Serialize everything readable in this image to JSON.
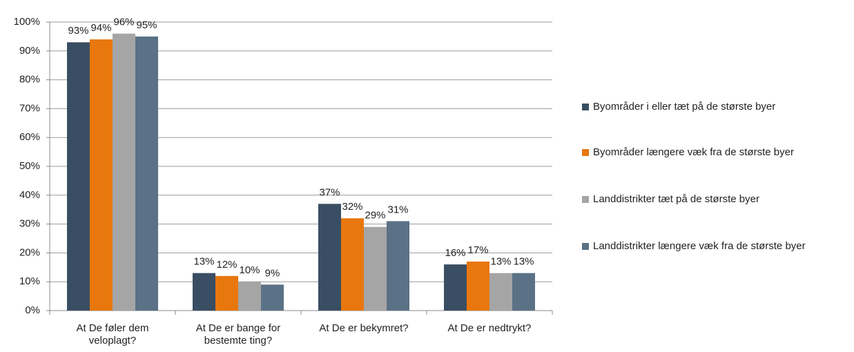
{
  "chart_data": {
    "type": "bar",
    "categories": [
      "At De føler dem veloplagt?",
      "At De er bange for bestemte ting?",
      "At De er bekymret?",
      "At De er nedtrykt?"
    ],
    "series": [
      {
        "name": "Byområder i eller tæt på de største byer",
        "color": "#3a4e63",
        "values": [
          93,
          13,
          37,
          16
        ],
        "value_labels": [
          "93%",
          "13%",
          "37%",
          "16%"
        ]
      },
      {
        "name": "Byområder længere væk fra de største byer",
        "color": "#e8770e",
        "values": [
          94,
          12,
          32,
          17
        ],
        "value_labels": [
          "94%",
          "12%",
          "32%",
          "17%"
        ]
      },
      {
        "name": "Landdistrikter tæt på de største byer",
        "color": "#a5a5a5",
        "values": [
          96,
          10,
          29,
          13
        ],
        "value_labels": [
          "96%",
          "10%",
          "29%",
          "13%"
        ]
      },
      {
        "name": "Landdistrikter længere væk fra de største byer",
        "color": "#5a7186",
        "values": [
          95,
          9,
          31,
          13
        ],
        "value_labels": [
          "95%",
          "9%",
          "31%",
          "13%"
        ]
      }
    ],
    "ylim": [
      0,
      100
    ],
    "yticks": [
      {
        "value": 0,
        "label": "0%"
      },
      {
        "value": 10,
        "label": "10%"
      },
      {
        "value": 20,
        "label": "20%"
      },
      {
        "value": 30,
        "label": "30%"
      },
      {
        "value": 40,
        "label": "40%"
      },
      {
        "value": 50,
        "label": "50%"
      },
      {
        "value": 60,
        "label": "60%"
      },
      {
        "value": 70,
        "label": "70%"
      },
      {
        "value": 80,
        "label": "80%"
      },
      {
        "value": 90,
        "label": "90%"
      },
      {
        "value": 100,
        "label": "100%"
      }
    ],
    "grid": true,
    "legend": "right"
  }
}
